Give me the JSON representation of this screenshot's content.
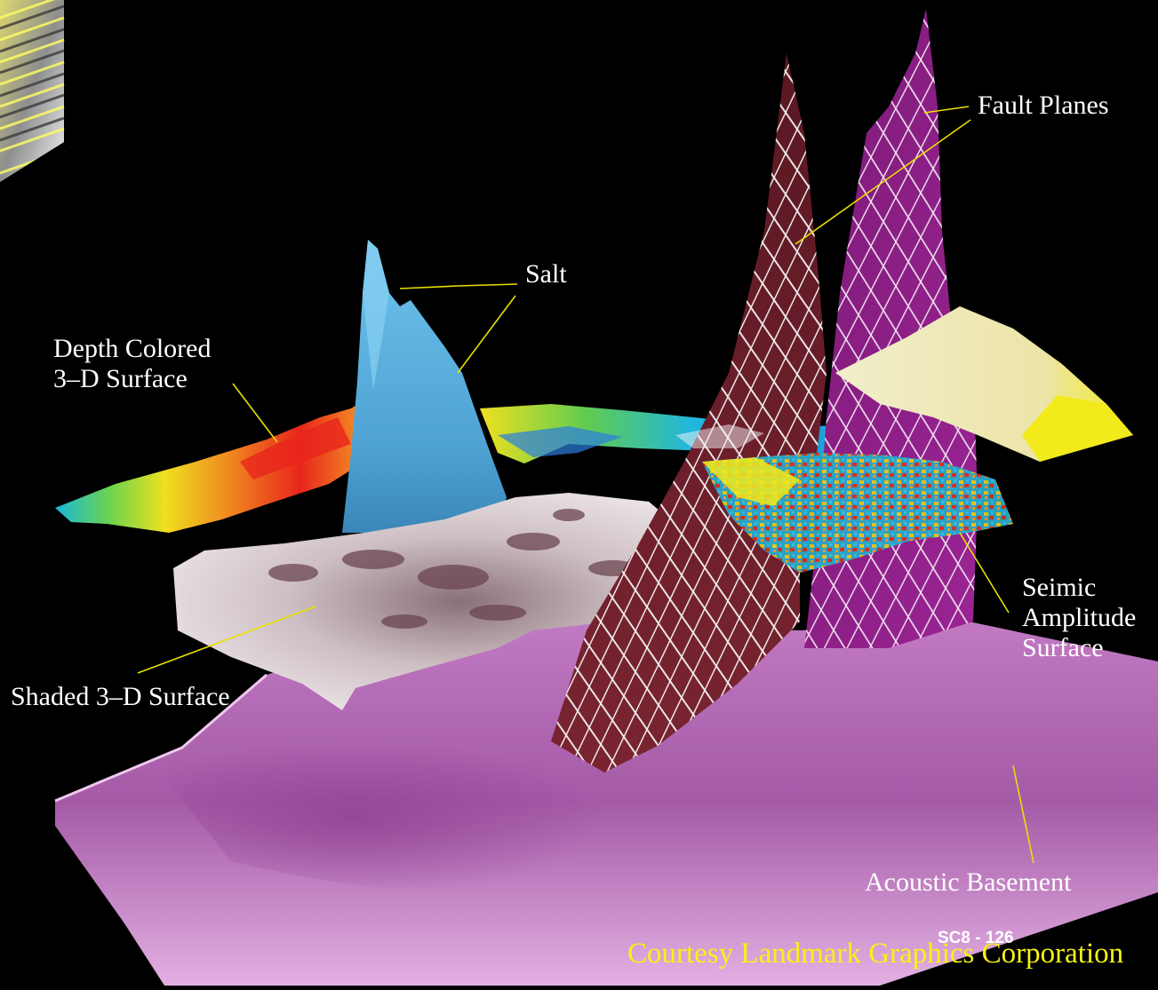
{
  "labels": {
    "fault_planes": "Fault Planes",
    "salt": "Salt",
    "depth_colored": [
      "Depth Colored",
      "3–D Surface"
    ],
    "shaded_surface": "Shaded 3–D Surface",
    "seismic_amplitude": [
      "Seimic",
      "Amplitude",
      "Surface"
    ],
    "acoustic_basement": "Acoustic Basement"
  },
  "credit": "Courtesy Landmark Graphics Corporation",
  "slide_number": "SC8 - 126",
  "colors": {
    "background": "#000000",
    "leader_lines": "#e8e000",
    "credit_text": "#f7f215",
    "basement": "#dba1dc",
    "salt": "#5fb4e0",
    "fault_plane_1": "#6a1f2a",
    "fault_plane_2": "#8e1f86",
    "seismic_top": "#e9e6c0",
    "seismic_yellow": "#f2ea1a",
    "shaded_surface": "#cfc5c8"
  }
}
